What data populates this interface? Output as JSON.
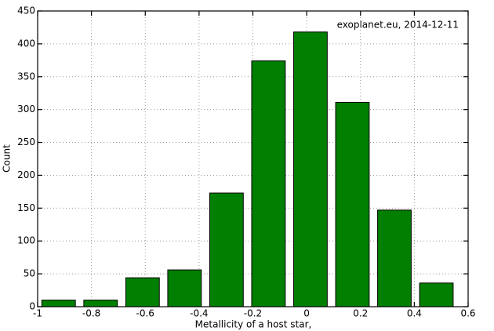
{
  "chart_data": {
    "type": "histogram",
    "annotation": "exoplanet.eu, 2014-12-11",
    "x_label": "Metallicity of a host star,",
    "y_label": "Count",
    "bins": [
      -1,
      -0.844,
      -0.688,
      -0.532,
      -0.376,
      -0.22,
      -0.064,
      0.092,
      0.248,
      0.404,
      0.56
    ],
    "values": [
      10,
      10,
      44,
      56,
      173,
      374,
      418,
      311,
      147,
      36
    ],
    "color": "#007f00",
    "xlim": [
      -1,
      0.6
    ],
    "xticks": [
      -1,
      -0.8,
      -0.6,
      -0.4,
      -0.2,
      0,
      0.2,
      0.4,
      0.6
    ],
    "ylim": [
      0,
      450
    ],
    "yticks": [
      0,
      50,
      100,
      150,
      200,
      250,
      300,
      350,
      400,
      450
    ],
    "grid": true
  }
}
